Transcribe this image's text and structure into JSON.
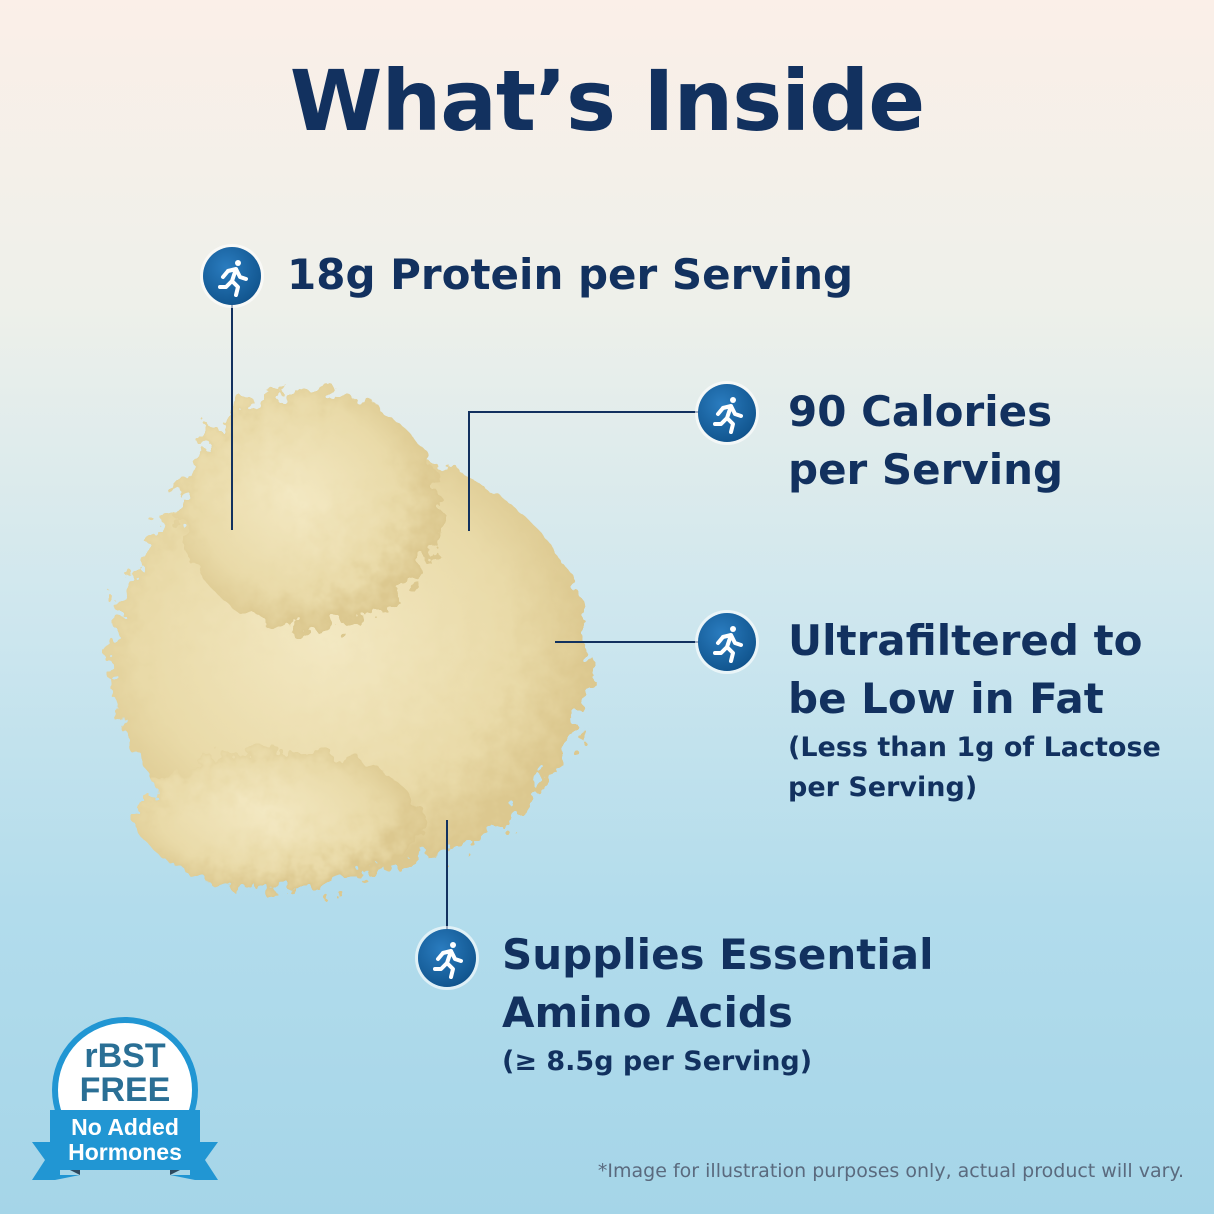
{
  "title": "What’s Inside",
  "features": [
    {
      "icon": "running-person-icon",
      "line1": "18g Protein per Serving"
    },
    {
      "icon": "running-person-icon",
      "line1": "90 Calories",
      "line2": "per Serving"
    },
    {
      "icon": "running-person-icon",
      "line1": "Ultrafiltered to",
      "line2": "be Low in Fat",
      "sub1": "(Less than 1g of Lactose",
      "sub2": "per Serving)"
    },
    {
      "icon": "running-person-icon",
      "line1": "Supplies Essential",
      "line2": "Amino Acids",
      "sub1": "(≥ 8.5g per Serving)"
    }
  ],
  "badge": {
    "top1": "rBST",
    "top2": "FREE",
    "ribbon1": "No Added",
    "ribbon2": "Hormones"
  },
  "footnote": "*Image for illustration purposes only, actual product will vary.",
  "colors": {
    "navy": "#12315f",
    "badge_blue": "#2196d3",
    "icon_blue": "#135892"
  }
}
